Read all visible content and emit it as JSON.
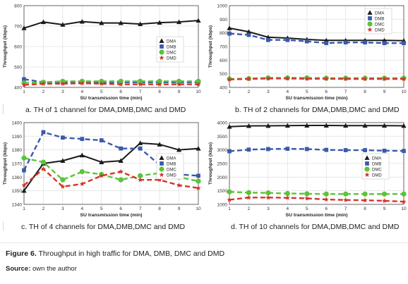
{
  "figure": {
    "caption_label": "Figure 6.",
    "caption_text": " Throughput in high traffic for DMA, DMB, DMC and DMD",
    "source_label": "Source:",
    "source_text": " own the author"
  },
  "colors": {
    "DMA": "#1a1a1a",
    "DMB": "#3a5aa8",
    "DMC": "#5ac43a",
    "DMD": "#d8322e"
  },
  "chart_data": [
    {
      "type": "line",
      "caption": "a. TH of  1 channel for DMA,DMB,DMC and DMD",
      "xlabel": "SU transmission time (min)",
      "ylabel": "Throughput (kbps)",
      "xlim": [
        1,
        10
      ],
      "ylim": [
        400,
        800
      ],
      "xticks": [
        1,
        2,
        3,
        4,
        5,
        6,
        7,
        8,
        9,
        10
      ],
      "yticks": [
        400,
        500,
        600,
        700,
        800
      ],
      "x": [
        1,
        2,
        3,
        4,
        5,
        6,
        7,
        8,
        9,
        10
      ],
      "legend": "middle-right",
      "series": [
        {
          "name": "DMA",
          "values": [
            690,
            720,
            707,
            722,
            715,
            715,
            710,
            717,
            720,
            727
          ]
        },
        {
          "name": "DMB",
          "values": [
            440,
            425,
            425,
            428,
            425,
            425,
            425,
            425,
            425,
            425
          ]
        },
        {
          "name": "DMC",
          "values": [
            422,
            425,
            430,
            430,
            430,
            430,
            430,
            430,
            430,
            430
          ]
        },
        {
          "name": "DMD",
          "values": [
            412,
            418,
            418,
            420,
            418,
            415,
            415,
            415,
            415,
            415
          ]
        }
      ]
    },
    {
      "type": "line",
      "caption": "b. TH of 2 channels for DMA,DMB,DMC and DMD",
      "xlabel": "SU transmission time (min)",
      "ylabel": "Throughput (kbps)",
      "xlim": [
        1,
        10
      ],
      "ylim": [
        400,
        1000
      ],
      "xticks": [
        1,
        2,
        3,
        4,
        5,
        6,
        7,
        8,
        9,
        10
      ],
      "yticks": [
        400,
        500,
        600,
        700,
        800,
        900,
        1000
      ],
      "x": [
        1,
        2,
        3,
        4,
        5,
        6,
        7,
        8,
        9,
        10
      ],
      "legend": "top-right",
      "series": [
        {
          "name": "DMA",
          "values": [
            835,
            808,
            768,
            762,
            752,
            745,
            745,
            745,
            745,
            743
          ]
        },
        {
          "name": "DMB",
          "values": [
            795,
            785,
            748,
            748,
            738,
            725,
            730,
            730,
            725,
            725
          ]
        },
        {
          "name": "DMC",
          "values": [
            462,
            465,
            470,
            470,
            470,
            468,
            468,
            468,
            468,
            468
          ]
        },
        {
          "name": "DMD",
          "values": [
            458,
            462,
            465,
            465,
            463,
            463,
            462,
            462,
            462,
            462
          ]
        }
      ]
    },
    {
      "type": "line",
      "caption": "c. TH of  4 channels for DMA,DMB,DMC and DMD",
      "xlabel": "SU transmission time (min)",
      "ylabel": "Throughput (kbps)",
      "xlim": [
        1,
        10
      ],
      "ylim": [
        1340,
        1400
      ],
      "xticks": [
        1,
        2,
        3,
        4,
        5,
        6,
        7,
        8,
        9,
        10
      ],
      "yticks": [
        1340,
        1350,
        1360,
        1370,
        1380,
        1390,
        1400
      ],
      "x": [
        1,
        2,
        3,
        4,
        5,
        6,
        7,
        8,
        9,
        10
      ],
      "legend": "middle-right",
      "series": [
        {
          "name": "DMA",
          "values": [
            1350,
            1370,
            1372,
            1376,
            1371,
            1372,
            1385,
            1384,
            1380,
            1381
          ]
        },
        {
          "name": "DMB",
          "values": [
            1365,
            1393,
            1389,
            1388,
            1387,
            1381,
            1381,
            1369,
            1362,
            1361
          ]
        },
        {
          "name": "DMC",
          "values": [
            1374,
            1371,
            1358,
            1364,
            1362,
            1358,
            1361,
            1363,
            1360,
            1357
          ]
        },
        {
          "name": "DMD",
          "values": [
            1354,
            1366,
            1353,
            1355,
            1361,
            1364,
            1358,
            1358,
            1354,
            1352
          ]
        }
      ]
    },
    {
      "type": "line",
      "caption": "d. TH of  10 channels for DMA,DMB,DMC and DMD",
      "xlabel": "SU transmission time (min)",
      "ylabel": "Throughput (kbps)",
      "xlim": [
        1,
        10
      ],
      "ylim": [
        1000,
        4000
      ],
      "xticks": [
        1,
        2,
        3,
        4,
        5,
        6,
        7,
        8,
        9,
        10
      ],
      "yticks": [
        1000,
        1500,
        2000,
        2500,
        3000,
        3500,
        4000
      ],
      "x": [
        1,
        2,
        3,
        4,
        5,
        6,
        7,
        8,
        9,
        10
      ],
      "legend": "middle-right",
      "series": [
        {
          "name": "DMA",
          "values": [
            3850,
            3880,
            3885,
            3890,
            3895,
            3895,
            3890,
            3890,
            3890,
            3885
          ]
        },
        {
          "name": "DMB",
          "values": [
            2950,
            3010,
            3030,
            3040,
            3030,
            3000,
            2990,
            2990,
            2970,
            2960
          ]
        },
        {
          "name": "DMC",
          "values": [
            1460,
            1430,
            1420,
            1400,
            1390,
            1380,
            1380,
            1380,
            1380,
            1380
          ]
        },
        {
          "name": "DMD",
          "values": [
            1170,
            1250,
            1250,
            1240,
            1220,
            1180,
            1160,
            1150,
            1130,
            1100
          ]
        }
      ]
    }
  ]
}
